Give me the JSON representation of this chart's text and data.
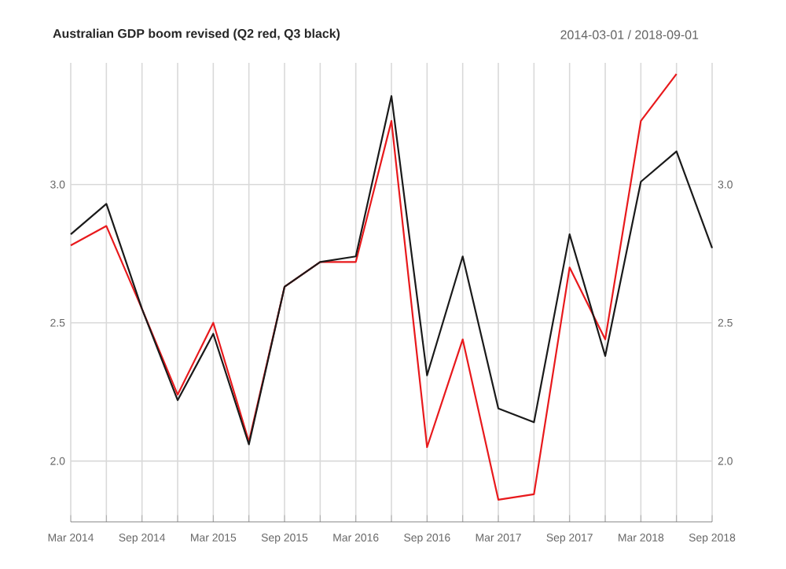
{
  "chart_data": {
    "type": "line",
    "title": "Australian GDP boom revised (Q2 red, Q3 black)",
    "subtitle": "2014-03-01 / 2018-09-01",
    "x": [
      "2014-03",
      "2014-06",
      "2014-09",
      "2014-12",
      "2015-03",
      "2015-06",
      "2015-09",
      "2015-12",
      "2016-03",
      "2016-06",
      "2016-09",
      "2016-12",
      "2017-03",
      "2017-06",
      "2017-09",
      "2017-12",
      "2018-03",
      "2018-06",
      "2018-09"
    ],
    "series": [
      {
        "color": "#e8191c",
        "values": [
          2.78,
          2.85,
          2.55,
          2.24,
          2.5,
          2.07,
          2.63,
          2.72,
          2.72,
          3.23,
          2.05,
          2.44,
          1.86,
          1.88,
          2.7,
          2.44,
          3.23,
          3.4,
          null
        ]
      },
      {
        "color": "#1a1a1a",
        "values": [
          2.82,
          2.93,
          2.55,
          2.22,
          2.46,
          2.06,
          2.63,
          2.72,
          2.74,
          3.32,
          2.31,
          2.74,
          2.19,
          2.14,
          2.82,
          2.38,
          3.01,
          3.12,
          2.77
        ]
      }
    ],
    "xlim": [
      "2014-03",
      "2018-09"
    ],
    "xticks": [
      {
        "value": "2014-03",
        "label": "Mar 2014"
      },
      {
        "value": "2014-06",
        "label": null
      },
      {
        "value": "2014-09",
        "label": "Sep 2014"
      },
      {
        "value": "2014-12",
        "label": null
      },
      {
        "value": "2015-03",
        "label": "Mar 2015"
      },
      {
        "value": "2015-06",
        "label": null
      },
      {
        "value": "2015-09",
        "label": "Sep 2015"
      },
      {
        "value": "2015-12",
        "label": null
      },
      {
        "value": "2016-03",
        "label": "Mar 2016"
      },
      {
        "value": "2016-06",
        "label": null
      },
      {
        "value": "2016-09",
        "label": "Sep 2016"
      },
      {
        "value": "2016-12",
        "label": null
      },
      {
        "value": "2017-03",
        "label": "Mar 2017"
      },
      {
        "value": "2017-06",
        "label": null
      },
      {
        "value": "2017-09",
        "label": "Sep 2017"
      },
      {
        "value": "2017-12",
        "label": null
      },
      {
        "value": "2018-03",
        "label": "Mar 2018"
      },
      {
        "value": "2018-06",
        "label": null
      },
      {
        "value": "2018-09",
        "label": "Sep 2018"
      }
    ],
    "ylim": [
      1.78,
      3.44
    ],
    "yticks": [
      {
        "value": 2,
        "label": "2.0"
      },
      2.5,
      {
        "value": 3,
        "label": "3.0"
      }
    ],
    "y2lim": [
      1.78,
      3.44
    ],
    "y2ticks": [
      {
        "value": 2,
        "label": "2.0"
      },
      2.5,
      {
        "value": 3,
        "label": "3.0"
      }
    ],
    "grid": true,
    "line_style": "solid",
    "marker": "none"
  }
}
